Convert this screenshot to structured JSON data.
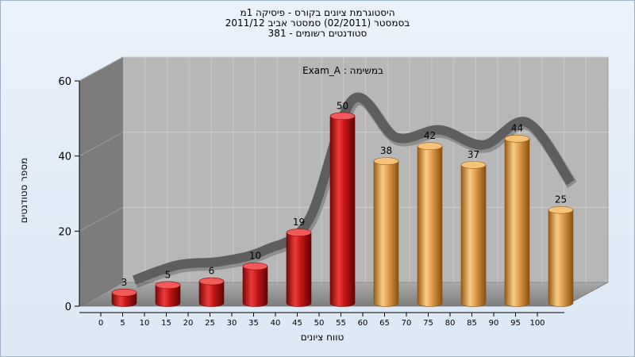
{
  "header": {
    "line1": "היסטוגרמת ציונים בקורס - פיסיקה 1מ",
    "line2": "בסמסטר  (02/2011)  סמסטר אביב 2011/12",
    "line3": "סטודנטים רשומים - 381"
  },
  "chart_data": {
    "type": "bar",
    "categories": [
      "0",
      "10",
      "20",
      "30",
      "40",
      "50",
      "60",
      "70",
      "80",
      "90",
      "100"
    ],
    "values": [
      3,
      5,
      6,
      10,
      19,
      50,
      38,
      42,
      37,
      44,
      25
    ],
    "bar_colors": [
      "#d81e1e",
      "#d81e1e",
      "#d81e1e",
      "#d81e1e",
      "#d81e1e",
      "#d81e1e",
      "#e6a04a",
      "#e6a04a",
      "#e6a04a",
      "#e6a04a",
      "#e6a04a"
    ],
    "x_tick_labels": [
      "0",
      "5",
      "10",
      "15",
      "20",
      "25",
      "30",
      "35",
      "40",
      "45",
      "50",
      "55",
      "60",
      "65",
      "70",
      "75",
      "80",
      "85",
      "90",
      "95",
      "100"
    ],
    "y_ticks": [
      0,
      20,
      40,
      60
    ],
    "ylim": [
      0,
      60
    ],
    "xlabel": "טווח ציונים",
    "ylabel": "מספר סטודנטים",
    "annotation": "Exam_A : במשימה",
    "trend_line": [
      4,
      8,
      9,
      12,
      20,
      52,
      42,
      44,
      40,
      46,
      30
    ],
    "grid": true,
    "colors": {
      "plot_back": "#b7b7b7",
      "plot_side": "#7c7c7c",
      "plot_floor": "#8e8e8e",
      "trend": "#5e5e5e",
      "red": "#d81e1e",
      "orange": "#e6a04a"
    }
  }
}
